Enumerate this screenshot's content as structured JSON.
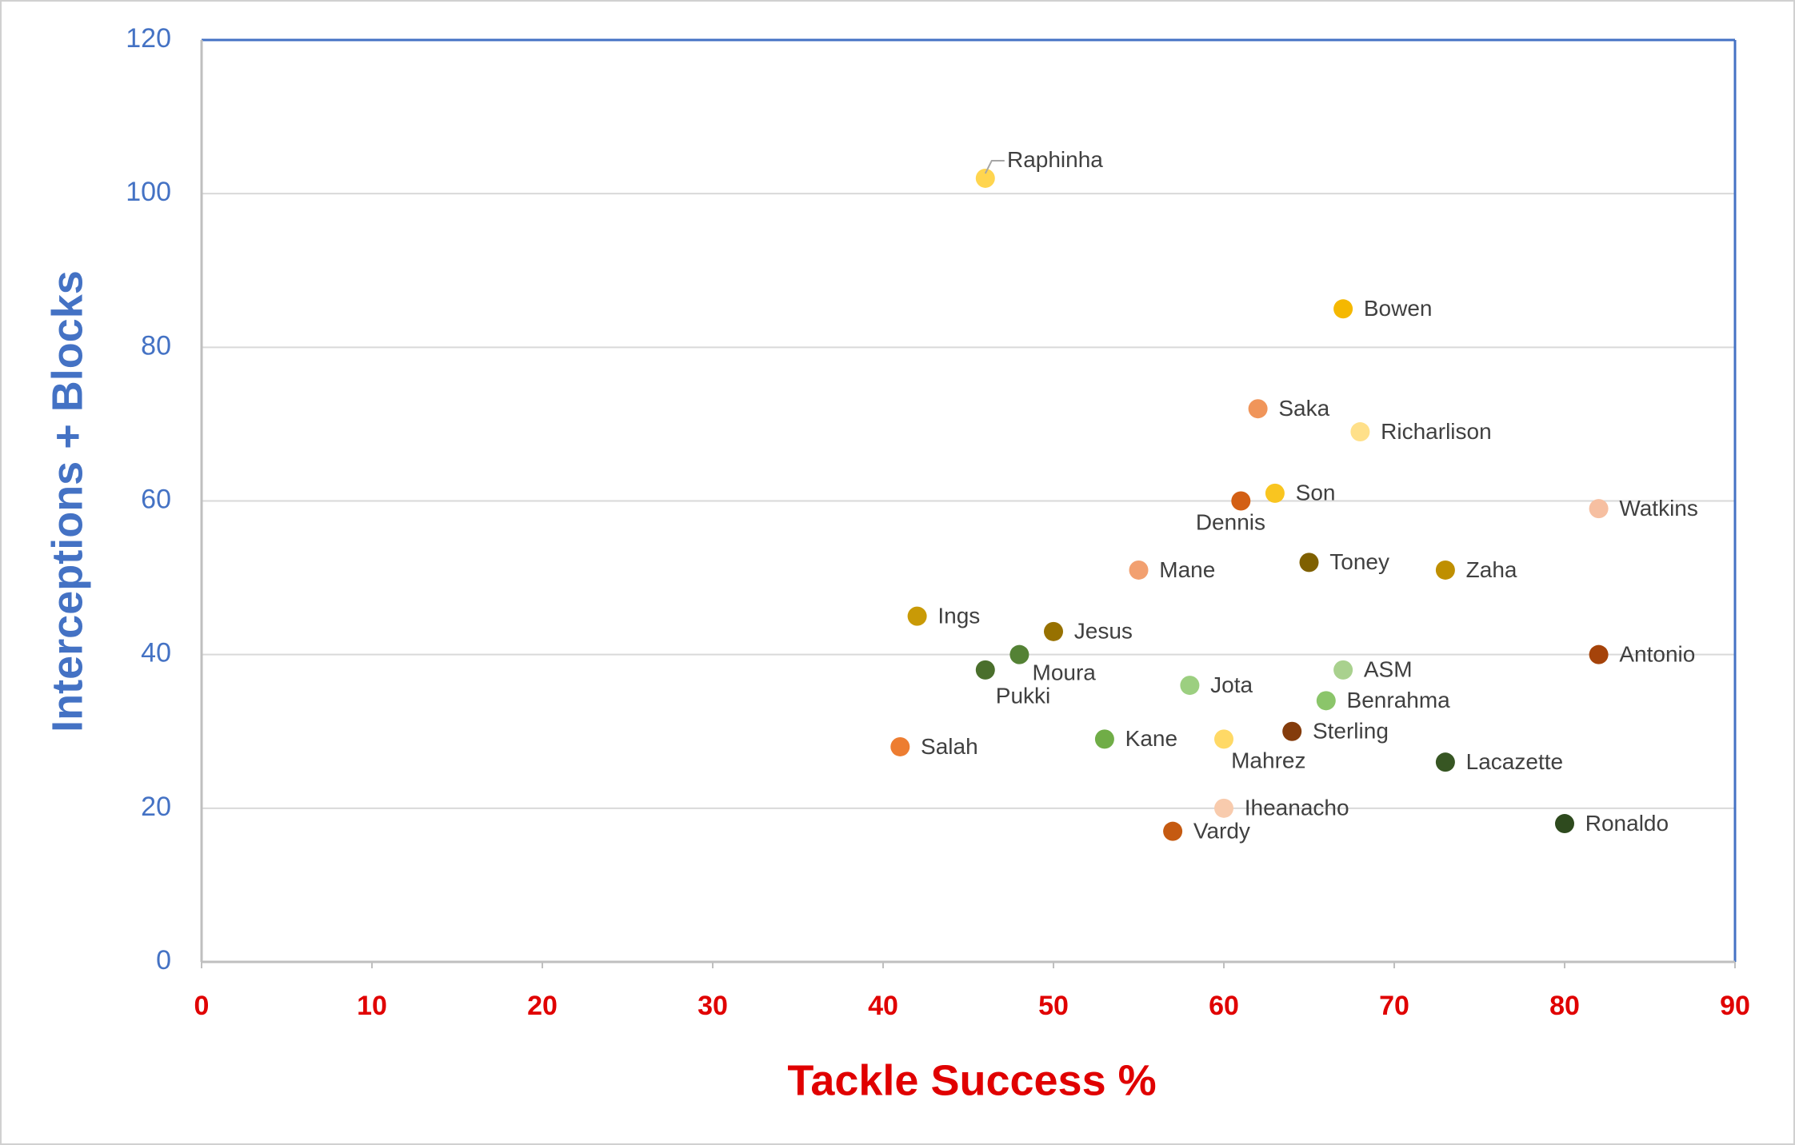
{
  "chart_data": {
    "type": "scatter",
    "x_label": "Tackle Success %",
    "y_label": "Interceptions + Blocks",
    "labels": [
      "Raphinha",
      "Bowen",
      "Saka",
      "Richarlison",
      "Son",
      "Dennis",
      "Watkins",
      "Mane",
      "Toney",
      "Zaha",
      "Ings",
      "Jesus",
      "Moura",
      "Pukki",
      "Antonio",
      "ASM",
      "Jota",
      "Benrahma",
      "Sterling",
      "Kane",
      "Mahrez",
      "Salah",
      "Lacazette",
      "Iheanacho",
      "Ronaldo",
      "Vardy"
    ],
    "x": [
      46,
      67,
      62,
      68,
      63,
      61,
      82,
      55,
      65,
      73,
      42,
      50,
      48,
      46,
      82,
      67,
      58,
      66,
      64,
      53,
      60,
      41,
      73,
      60,
      80,
      57
    ],
    "values": [
      102,
      85,
      72,
      69,
      61,
      60,
      59,
      51,
      52,
      51,
      45,
      43,
      40,
      38,
      40,
      38,
      36,
      34,
      30,
      29,
      29,
      28,
      26,
      20,
      18,
      17
    ],
    "colors": [
      "#ffd54f",
      "#f5b800",
      "#f0955a",
      "#ffe08a",
      "#f9c520",
      "#d35f14",
      "#f6bfa1",
      "#f2a070",
      "#7f6000",
      "#bf8f00",
      "#c99a06",
      "#977100",
      "#548235",
      "#4a6f2c",
      "#a5430a",
      "#a9d18e",
      "#9ccf80",
      "#8bc56a",
      "#843c0c",
      "#70ad47",
      "#ffd966",
      "#ed7d31",
      "#375623",
      "#f8cbad",
      "#2e4a1e",
      "#c55a11"
    ],
    "xlim": [
      0,
      90
    ],
    "ylim": [
      0,
      120
    ],
    "xticks": [
      0,
      10,
      20,
      30,
      40,
      50,
      60,
      70,
      80,
      90
    ],
    "yticks": [
      0,
      20,
      40,
      60,
      80,
      100,
      120
    ],
    "grid": true
  }
}
